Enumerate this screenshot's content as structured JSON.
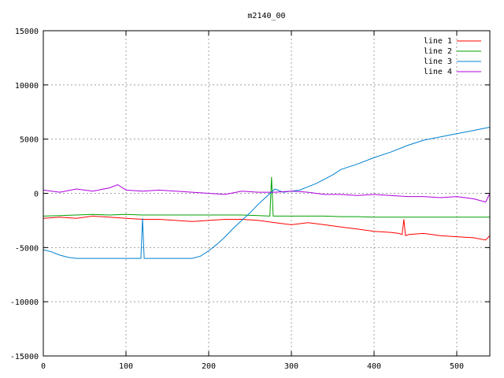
{
  "chart_data": {
    "type": "line",
    "title": "m2140_00",
    "xlabel": "",
    "ylabel": "",
    "xlim": [
      0,
      540
    ],
    "ylim": [
      -15000,
      15000
    ],
    "xticks": [
      0,
      100,
      200,
      300,
      400,
      500
    ],
    "yticks": [
      -15000,
      -10000,
      -5000,
      0,
      5000,
      10000,
      15000
    ],
    "grid": true,
    "legend_position": "top-right",
    "series": [
      {
        "name": "line 1",
        "color": "#ff0000",
        "x": [
          0,
          20,
          40,
          60,
          80,
          100,
          120,
          140,
          160,
          180,
          200,
          220,
          240,
          260,
          280,
          300,
          320,
          340,
          360,
          380,
          400,
          420,
          430,
          434,
          436,
          438,
          442,
          460,
          480,
          500,
          520,
          535,
          540
        ],
        "y": [
          -2300,
          -2200,
          -2300,
          -2100,
          -2200,
          -2300,
          -2400,
          -2400,
          -2500,
          -2600,
          -2500,
          -2400,
          -2400,
          -2500,
          -2700,
          -2900,
          -2700,
          -2900,
          -3100,
          -3300,
          -3500,
          -3600,
          -3700,
          -3800,
          -2400,
          -3900,
          -3800,
          -3700,
          -3900,
          -4000,
          -4100,
          -4300,
          -3900
        ]
      },
      {
        "name": "line 2",
        "color": "#00a000",
        "x": [
          0,
          20,
          40,
          60,
          80,
          100,
          120,
          140,
          160,
          180,
          200,
          220,
          240,
          260,
          274,
          276,
          278,
          280,
          300,
          320,
          340,
          360,
          380,
          400,
          420,
          440,
          460,
          480,
          500,
          520,
          540
        ],
        "y": [
          -2100,
          -2050,
          -2000,
          -1950,
          -2000,
          -1950,
          -2000,
          -2000,
          -2000,
          -2000,
          -2000,
          -2000,
          -2000,
          -2050,
          -2100,
          1500,
          -2100,
          -2100,
          -2100,
          -2100,
          -2100,
          -2150,
          -2150,
          -2200,
          -2200,
          -2200,
          -2200,
          -2200,
          -2200,
          -2200,
          -2200
        ]
      },
      {
        "name": "line 3",
        "color": "#0080d0",
        "x": [
          0,
          10,
          20,
          30,
          40,
          60,
          80,
          100,
          110,
          118,
          120,
          122,
          130,
          140,
          160,
          170,
          180,
          190,
          200,
          210,
          220,
          230,
          240,
          250,
          260,
          270,
          280,
          290,
          300,
          310,
          320,
          330,
          340,
          350,
          360,
          380,
          400,
          420,
          440,
          460,
          480,
          500,
          520,
          540
        ],
        "y": [
          -5200,
          -5400,
          -5700,
          -5900,
          -6000,
          -6000,
          -6000,
          -6000,
          -6000,
          -6000,
          -2300,
          -6000,
          -6000,
          -6000,
          -6000,
          -6000,
          -6000,
          -5800,
          -5300,
          -4700,
          -4000,
          -3200,
          -2500,
          -1800,
          -1000,
          -300,
          400,
          100,
          200,
          300,
          600,
          900,
          1300,
          1700,
          2200,
          2700,
          3300,
          3800,
          4400,
          4900,
          5200,
          5500,
          5800,
          6100
        ]
      },
      {
        "name": "line 4",
        "color": "#b000e0",
        "x": [
          0,
          20,
          40,
          60,
          80,
          90,
          100,
          120,
          140,
          160,
          180,
          200,
          220,
          240,
          260,
          280,
          300,
          320,
          340,
          360,
          380,
          400,
          420,
          440,
          460,
          480,
          500,
          520,
          535,
          540
        ],
        "y": [
          300,
          100,
          400,
          200,
          500,
          800,
          300,
          200,
          300,
          200,
          100,
          0,
          -100,
          200,
          100,
          100,
          200,
          100,
          -100,
          -100,
          -200,
          -100,
          -200,
          -300,
          -300,
          -400,
          -300,
          -500,
          -800,
          0
        ]
      }
    ]
  }
}
